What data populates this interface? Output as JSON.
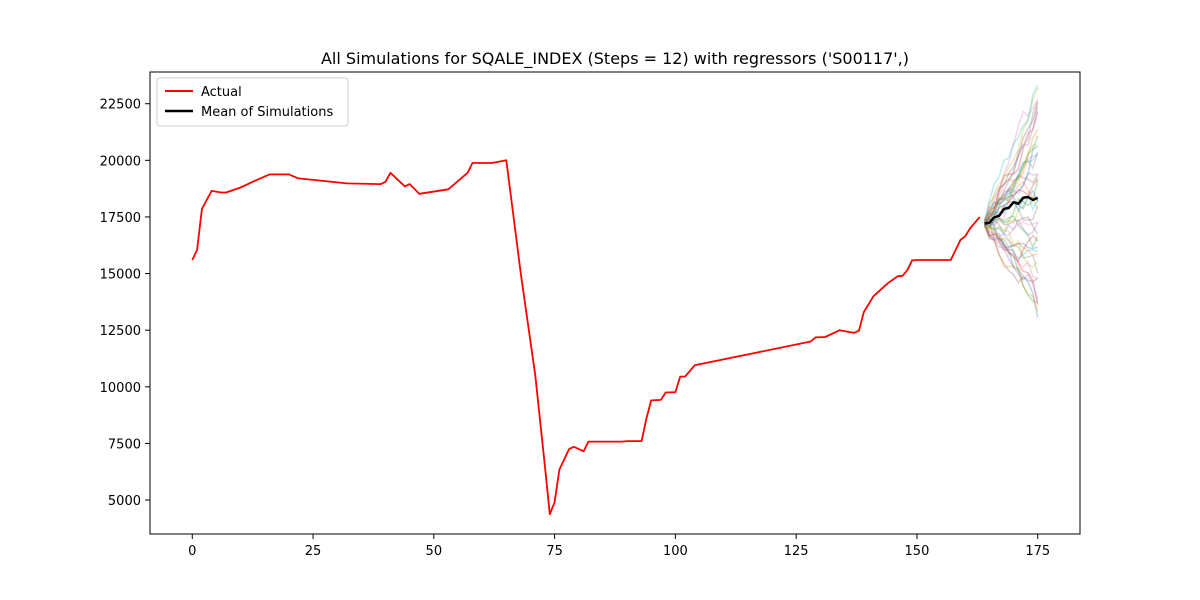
{
  "chart_data": {
    "type": "line",
    "title": "All Simulations for SQALE_INDEX (Steps = 12) with regressors ('S00117',)",
    "xlabel": "",
    "ylabel": "",
    "xlim": [
      -8.75,
      183.75
    ],
    "ylim": [
      3500,
      23900
    ],
    "x_ticks": [
      0,
      25,
      50,
      75,
      100,
      125,
      150,
      175
    ],
    "y_ticks": [
      5000,
      7500,
      10000,
      12500,
      15000,
      17500,
      20000,
      22500
    ],
    "grid": false,
    "legend": {
      "placement": "top-left",
      "entries": [
        "Actual",
        "Mean of Simulations"
      ]
    },
    "series": [
      {
        "name": "Actual",
        "color": "#ff0000",
        "points": [
          [
            0,
            15600
          ],
          [
            1,
            16050
          ],
          [
            2,
            17850
          ],
          [
            4,
            18650
          ],
          [
            6,
            18580
          ],
          [
            7,
            18580
          ],
          [
            10,
            18800
          ],
          [
            13,
            19100
          ],
          [
            16,
            19380
          ],
          [
            20,
            19380
          ],
          [
            22,
            19200
          ],
          [
            32,
            18980
          ],
          [
            39,
            18950
          ],
          [
            40,
            19050
          ],
          [
            41,
            19450
          ],
          [
            44,
            18850
          ],
          [
            45,
            18950
          ],
          [
            47,
            18520
          ],
          [
            53,
            18720
          ],
          [
            57,
            19450
          ],
          [
            58,
            19880
          ],
          [
            62,
            19880
          ],
          [
            65,
            20000
          ],
          [
            68,
            15000
          ],
          [
            71,
            10500
          ],
          [
            73,
            6500
          ],
          [
            74,
            4380
          ],
          [
            75,
            4900
          ],
          [
            76,
            6350
          ],
          [
            78,
            7250
          ],
          [
            79,
            7350
          ],
          [
            81,
            7150
          ],
          [
            82,
            7580
          ],
          [
            89,
            7580
          ],
          [
            90,
            7600
          ],
          [
            93,
            7600
          ],
          [
            94,
            8600
          ],
          [
            95,
            9400
          ],
          [
            97,
            9420
          ],
          [
            98,
            9750
          ],
          [
            100,
            9760
          ],
          [
            101,
            10450
          ],
          [
            102,
            10450
          ],
          [
            104,
            10950
          ],
          [
            128,
            12000
          ],
          [
            129,
            12180
          ],
          [
            131,
            12200
          ],
          [
            134,
            12500
          ],
          [
            137,
            12380
          ],
          [
            138,
            12480
          ],
          [
            139,
            13300
          ],
          [
            141,
            14000
          ],
          [
            144,
            14580
          ],
          [
            146,
            14880
          ],
          [
            147,
            14900
          ],
          [
            148,
            15150
          ],
          [
            149,
            15580
          ],
          [
            150,
            15600
          ],
          [
            157,
            15600
          ],
          [
            159,
            16480
          ],
          [
            160,
            16650
          ],
          [
            161,
            17000
          ],
          [
            163,
            17500
          ]
        ]
      },
      {
        "name": "Mean of Simulations",
        "color": "#000000",
        "points": [
          [
            164,
            17200
          ],
          [
            165,
            17250
          ],
          [
            166,
            17480
          ],
          [
            167,
            17550
          ],
          [
            168,
            17850
          ],
          [
            169,
            17900
          ],
          [
            170,
            18150
          ],
          [
            171,
            18080
          ],
          [
            172,
            18350
          ],
          [
            173,
            18380
          ],
          [
            174,
            18250
          ],
          [
            175,
            18350
          ]
        ]
      }
    ],
    "simulations": {
      "x_start": 164,
      "x_end": 175,
      "count": 40,
      "start_value": 17200,
      "end_range": [
        13200,
        23300
      ],
      "colors": [
        "#1f77b4",
        "#ff7f0e",
        "#2ca02c",
        "#d62728",
        "#9467bd",
        "#8c564b",
        "#e377c2",
        "#7f7f7f",
        "#bcbd22",
        "#17becf"
      ]
    }
  }
}
